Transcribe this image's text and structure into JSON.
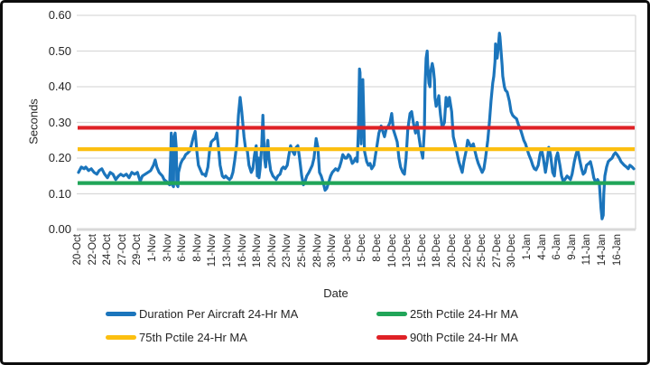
{
  "chart_data": {
    "type": "line",
    "title": "",
    "xlabel": "Date",
    "ylabel": "Seconds",
    "ylim": [
      0,
      0.6
    ],
    "grid": true,
    "legend_position": "bottom",
    "y_tick_labels": [
      "0.00",
      "0.10",
      "0.20",
      "0.30",
      "0.40",
      "0.50",
      "0.60"
    ],
    "x_tick_labels": [
      "20-Oct",
      "22-Oct",
      "24-Oct",
      "27-Oct",
      "29-Oct",
      "1-Nov",
      "3-Nov",
      "6-Nov",
      "8-Nov",
      "11-Nov",
      "13-Nov",
      "16-Nov",
      "18-Nov",
      "20-Nov",
      "23-Nov",
      "25-Nov",
      "28-Nov",
      "30-Nov",
      "3-Dec",
      "5-Dec",
      "8-Dec",
      "10-Dec",
      "13-Dec",
      "15-Dec",
      "18-Dec",
      "20-Dec",
      "22-Dec",
      "25-Dec",
      "27-Dec",
      "30-Dec",
      "1-Jan",
      "4-Jan",
      "6-Jan",
      "9-Jan",
      "11-Jan",
      "14-Jan",
      "16-Jan"
    ],
    "reference_lines": [
      {
        "name": "25th Pctile 24-Hr MA",
        "value": 0.13,
        "color": "#21A559"
      },
      {
        "name": "75th Pctile 24-Hr MA",
        "value": 0.225,
        "color": "#FCBF10"
      },
      {
        "name": "90th Pctile 24-Hr MA",
        "value": 0.285,
        "color": "#DF2126"
      }
    ],
    "series": {
      "name": "Duration Per Aircraft 24-Hr MA",
      "color": "#1B75BC",
      "x_is_fraction_of_date_axis": true,
      "points": [
        [
          0,
          0.16
        ],
        [
          0.005,
          0.175
        ],
        [
          0.01,
          0.17
        ],
        [
          0.013,
          0.175
        ],
        [
          0.018,
          0.165
        ],
        [
          0.023,
          0.17
        ],
        [
          0.028,
          0.16
        ],
        [
          0.033,
          0.155
        ],
        [
          0.037,
          0.165
        ],
        [
          0.042,
          0.17
        ],
        [
          0.047,
          0.155
        ],
        [
          0.052,
          0.145
        ],
        [
          0.057,
          0.16
        ],
        [
          0.062,
          0.155
        ],
        [
          0.067,
          0.14
        ],
        [
          0.072,
          0.15
        ],
        [
          0.076,
          0.155
        ],
        [
          0.081,
          0.15
        ],
        [
          0.086,
          0.155
        ],
        [
          0.091,
          0.145
        ],
        [
          0.096,
          0.16
        ],
        [
          0.101,
          0.155
        ],
        [
          0.106,
          0.16
        ],
        [
          0.111,
          0.135
        ],
        [
          0.115,
          0.15
        ],
        [
          0.12,
          0.155
        ],
        [
          0.125,
          0.16
        ],
        [
          0.13,
          0.165
        ],
        [
          0.135,
          0.18
        ],
        [
          0.138,
          0.195
        ],
        [
          0.141,
          0.175
        ],
        [
          0.145,
          0.16
        ],
        [
          0.148,
          0.155
        ],
        [
          0.151,
          0.15
        ],
        [
          0.154,
          0.14
        ],
        [
          0.158,
          0.135
        ],
        [
          0.161,
          0.13
        ],
        [
          0.164,
          0.125
        ],
        [
          0.166,
          0.21
        ],
        [
          0.167,
          0.27
        ],
        [
          0.169,
          0.125
        ],
        [
          0.171,
          0.12
        ],
        [
          0.172,
          0.26
        ],
        [
          0.174,
          0.27
        ],
        [
          0.176,
          0.23
        ],
        [
          0.177,
          0.125
        ],
        [
          0.179,
          0.12
        ],
        [
          0.18,
          0.16
        ],
        [
          0.184,
          0.185
        ],
        [
          0.187,
          0.195
        ],
        [
          0.19,
          0.2
        ],
        [
          0.193,
          0.21
        ],
        [
          0.197,
          0.215
        ],
        [
          0.2,
          0.22
        ],
        [
          0.203,
          0.235
        ],
        [
          0.207,
          0.26
        ],
        [
          0.21,
          0.275
        ],
        [
          0.213,
          0.22
        ],
        [
          0.216,
          0.18
        ],
        [
          0.22,
          0.165
        ],
        [
          0.223,
          0.155
        ],
        [
          0.226,
          0.155
        ],
        [
          0.229,
          0.15
        ],
        [
          0.233,
          0.175
        ],
        [
          0.236,
          0.22
        ],
        [
          0.239,
          0.245
        ],
        [
          0.242,
          0.25
        ],
        [
          0.246,
          0.255
        ],
        [
          0.249,
          0.27
        ],
        [
          0.252,
          0.23
        ],
        [
          0.255,
          0.18
        ],
        [
          0.259,
          0.15
        ],
        [
          0.262,
          0.145
        ],
        [
          0.265,
          0.15
        ],
        [
          0.268,
          0.145
        ],
        [
          0.272,
          0.14
        ],
        [
          0.275,
          0.145
        ],
        [
          0.278,
          0.16
        ],
        [
          0.281,
          0.19
        ],
        [
          0.285,
          0.24
        ],
        [
          0.288,
          0.32
        ],
        [
          0.291,
          0.37
        ],
        [
          0.294,
          0.33
        ],
        [
          0.298,
          0.26
        ],
        [
          0.301,
          0.225
        ],
        [
          0.304,
          0.22
        ],
        [
          0.307,
          0.18
        ],
        [
          0.311,
          0.16
        ],
        [
          0.314,
          0.17
        ],
        [
          0.317,
          0.21
        ],
        [
          0.32,
          0.235
        ],
        [
          0.322,
          0.15
        ],
        [
          0.324,
          0.2
        ],
        [
          0.325,
          0.145
        ],
        [
          0.327,
          0.17
        ],
        [
          0.33,
          0.24
        ],
        [
          0.332,
          0.32
        ],
        [
          0.333,
          0.28
        ],
        [
          0.335,
          0.2
        ],
        [
          0.337,
          0.175
        ],
        [
          0.34,
          0.24
        ],
        [
          0.341,
          0.25
        ],
        [
          0.343,
          0.2
        ],
        [
          0.346,
          0.165
        ],
        [
          0.35,
          0.15
        ],
        [
          0.353,
          0.145
        ],
        [
          0.356,
          0.14
        ],
        [
          0.359,
          0.15
        ],
        [
          0.363,
          0.155
        ],
        [
          0.366,
          0.17
        ],
        [
          0.369,
          0.175
        ],
        [
          0.372,
          0.17
        ],
        [
          0.376,
          0.18
        ],
        [
          0.379,
          0.21
        ],
        [
          0.382,
          0.235
        ],
        [
          0.385,
          0.22
        ],
        [
          0.389,
          0.21
        ],
        [
          0.392,
          0.23
        ],
        [
          0.395,
          0.235
        ],
        [
          0.398,
          0.2
        ],
        [
          0.402,
          0.15
        ],
        [
          0.405,
          0.125
        ],
        [
          0.408,
          0.135
        ],
        [
          0.411,
          0.15
        ],
        [
          0.415,
          0.16
        ],
        [
          0.418,
          0.17
        ],
        [
          0.421,
          0.18
        ],
        [
          0.424,
          0.2
        ],
        [
          0.428,
          0.255
        ],
        [
          0.431,
          0.23
        ],
        [
          0.434,
          0.16
        ],
        [
          0.437,
          0.15
        ],
        [
          0.441,
          0.13
        ],
        [
          0.444,
          0.11
        ],
        [
          0.447,
          0.115
        ],
        [
          0.45,
          0.13
        ],
        [
          0.454,
          0.15
        ],
        [
          0.457,
          0.16
        ],
        [
          0.46,
          0.165
        ],
        [
          0.463,
          0.17
        ],
        [
          0.467,
          0.165
        ],
        [
          0.47,
          0.175
        ],
        [
          0.473,
          0.19
        ],
        [
          0.476,
          0.21
        ],
        [
          0.48,
          0.2
        ],
        [
          0.483,
          0.2
        ],
        [
          0.486,
          0.21
        ],
        [
          0.489,
          0.205
        ],
        [
          0.493,
          0.185
        ],
        [
          0.496,
          0.19
        ],
        [
          0.499,
          0.2
        ],
        [
          0.502,
          0.19
        ],
        [
          0.504,
          0.28
        ],
        [
          0.506,
          0.45
        ],
        [
          0.507,
          0.44
        ],
        [
          0.509,
          0.24
        ],
        [
          0.511,
          0.35
        ],
        [
          0.512,
          0.42
        ],
        [
          0.514,
          0.3
        ],
        [
          0.515,
          0.22
        ],
        [
          0.519,
          0.19
        ],
        [
          0.522,
          0.18
        ],
        [
          0.525,
          0.185
        ],
        [
          0.528,
          0.17
        ],
        [
          0.532,
          0.18
        ],
        [
          0.535,
          0.21
        ],
        [
          0.538,
          0.24
        ],
        [
          0.541,
          0.27
        ],
        [
          0.545,
          0.29
        ],
        [
          0.548,
          0.275
        ],
        [
          0.551,
          0.26
        ],
        [
          0.554,
          0.28
        ],
        [
          0.558,
          0.29
        ],
        [
          0.561,
          0.3
        ],
        [
          0.564,
          0.325
        ],
        [
          0.567,
          0.28
        ],
        [
          0.571,
          0.26
        ],
        [
          0.574,
          0.245
        ],
        [
          0.577,
          0.2
        ],
        [
          0.58,
          0.175
        ],
        [
          0.584,
          0.16
        ],
        [
          0.587,
          0.155
        ],
        [
          0.59,
          0.2
        ],
        [
          0.593,
          0.28
        ],
        [
          0.597,
          0.325
        ],
        [
          0.6,
          0.33
        ],
        [
          0.603,
          0.3
        ],
        [
          0.607,
          0.27
        ],
        [
          0.61,
          0.3
        ],
        [
          0.613,
          0.26
        ],
        [
          0.616,
          0.23
        ],
        [
          0.62,
          0.2
        ],
        [
          0.623,
          0.28
        ],
        [
          0.624,
          0.4
        ],
        [
          0.626,
          0.48
        ],
        [
          0.628,
          0.5
        ],
        [
          0.629,
          0.46
        ],
        [
          0.631,
          0.41
        ],
        [
          0.633,
          0.4
        ],
        [
          0.634,
          0.44
        ],
        [
          0.637,
          0.465
        ],
        [
          0.639,
          0.45
        ],
        [
          0.641,
          0.42
        ],
        [
          0.642,
          0.37
        ],
        [
          0.644,
          0.345
        ],
        [
          0.647,
          0.36
        ],
        [
          0.649,
          0.375
        ],
        [
          0.65,
          0.35
        ],
        [
          0.652,
          0.32
        ],
        [
          0.655,
          0.285
        ],
        [
          0.659,
          0.3
        ],
        [
          0.662,
          0.37
        ],
        [
          0.665,
          0.345
        ],
        [
          0.668,
          0.37
        ],
        [
          0.672,
          0.33
        ],
        [
          0.675,
          0.26
        ],
        [
          0.678,
          0.24
        ],
        [
          0.681,
          0.22
        ],
        [
          0.685,
          0.19
        ],
        [
          0.688,
          0.175
        ],
        [
          0.691,
          0.16
        ],
        [
          0.694,
          0.19
        ],
        [
          0.698,
          0.22
        ],
        [
          0.701,
          0.25
        ],
        [
          0.704,
          0.24
        ],
        [
          0.707,
          0.23
        ],
        [
          0.711,
          0.24
        ],
        [
          0.714,
          0.22
        ],
        [
          0.717,
          0.2
        ],
        [
          0.72,
          0.185
        ],
        [
          0.724,
          0.17
        ],
        [
          0.727,
          0.16
        ],
        [
          0.73,
          0.17
        ],
        [
          0.733,
          0.2
        ],
        [
          0.737,
          0.25
        ],
        [
          0.74,
          0.3
        ],
        [
          0.743,
          0.36
        ],
        [
          0.746,
          0.41
        ],
        [
          0.748,
          0.43
        ],
        [
          0.75,
          0.47
        ],
        [
          0.751,
          0.52
        ],
        [
          0.753,
          0.5
        ],
        [
          0.754,
          0.48
        ],
        [
          0.756,
          0.51
        ],
        [
          0.758,
          0.55
        ],
        [
          0.759,
          0.54
        ],
        [
          0.761,
          0.5
        ],
        [
          0.763,
          0.46
        ],
        [
          0.764,
          0.43
        ],
        [
          0.766,
          0.41
        ],
        [
          0.767,
          0.4
        ],
        [
          0.769,
          0.39
        ],
        [
          0.772,
          0.385
        ],
        [
          0.776,
          0.36
        ],
        [
          0.779,
          0.33
        ],
        [
          0.782,
          0.32
        ],
        [
          0.785,
          0.315
        ],
        [
          0.789,
          0.31
        ],
        [
          0.792,
          0.295
        ],
        [
          0.795,
          0.285
        ],
        [
          0.798,
          0.27
        ],
        [
          0.802,
          0.25
        ],
        [
          0.805,
          0.24
        ],
        [
          0.808,
          0.225
        ],
        [
          0.811,
          0.21
        ],
        [
          0.815,
          0.195
        ],
        [
          0.818,
          0.18
        ],
        [
          0.821,
          0.17
        ],
        [
          0.824,
          0.167
        ],
        [
          0.828,
          0.18
        ],
        [
          0.831,
          0.21
        ],
        [
          0.834,
          0.225
        ],
        [
          0.837,
          0.2
        ],
        [
          0.841,
          0.16
        ],
        [
          0.844,
          0.19
        ],
        [
          0.847,
          0.23
        ],
        [
          0.85,
          0.21
        ],
        [
          0.854,
          0.16
        ],
        [
          0.857,
          0.15
        ],
        [
          0.86,
          0.2
        ],
        [
          0.863,
          0.215
        ],
        [
          0.867,
          0.18
        ],
        [
          0.87,
          0.15
        ],
        [
          0.873,
          0.135
        ],
        [
          0.876,
          0.14
        ],
        [
          0.88,
          0.15
        ],
        [
          0.883,
          0.145
        ],
        [
          0.886,
          0.14
        ],
        [
          0.889,
          0.155
        ],
        [
          0.893,
          0.19
        ],
        [
          0.896,
          0.21
        ],
        [
          0.899,
          0.225
        ],
        [
          0.902,
          0.2
        ],
        [
          0.906,
          0.17
        ],
        [
          0.909,
          0.155
        ],
        [
          0.912,
          0.16
        ],
        [
          0.915,
          0.18
        ],
        [
          0.919,
          0.185
        ],
        [
          0.922,
          0.19
        ],
        [
          0.925,
          0.17
        ],
        [
          0.928,
          0.145
        ],
        [
          0.932,
          0.13
        ],
        [
          0.935,
          0.14
        ],
        [
          0.938,
          0.13
        ],
        [
          0.941,
          0.06
        ],
        [
          0.943,
          0.03
        ],
        [
          0.945,
          0.04
        ],
        [
          0.946,
          0.1
        ],
        [
          0.948,
          0.15
        ],
        [
          0.951,
          0.175
        ],
        [
          0.954,
          0.19
        ],
        [
          0.957,
          0.195
        ],
        [
          0.961,
          0.2
        ],
        [
          0.964,
          0.21
        ],
        [
          0.967,
          0.215
        ],
        [
          0.97,
          0.21
        ],
        [
          0.974,
          0.2
        ],
        [
          0.977,
          0.19
        ],
        [
          0.98,
          0.185
        ],
        [
          0.983,
          0.18
        ],
        [
          0.987,
          0.175
        ],
        [
          0.99,
          0.17
        ],
        [
          0.993,
          0.18
        ],
        [
          0.997,
          0.175
        ],
        [
          1,
          0.17
        ]
      ]
    },
    "legend": [
      {
        "label": "Duration Per Aircraft 24-Hr MA",
        "color": "#1B75BC"
      },
      {
        "label": "25th Pctile 24-Hr MA",
        "color": "#21A559"
      },
      {
        "label": "75th Pctile 24-Hr MA",
        "color": "#FCBF10"
      },
      {
        "label": "90th Pctile 24-Hr MA",
        "color": "#DF2126"
      }
    ],
    "style": {
      "gridline_color": "#D9D9D9",
      "axis_line_color": "#C6C6C6",
      "text_color": "#262626"
    }
  }
}
